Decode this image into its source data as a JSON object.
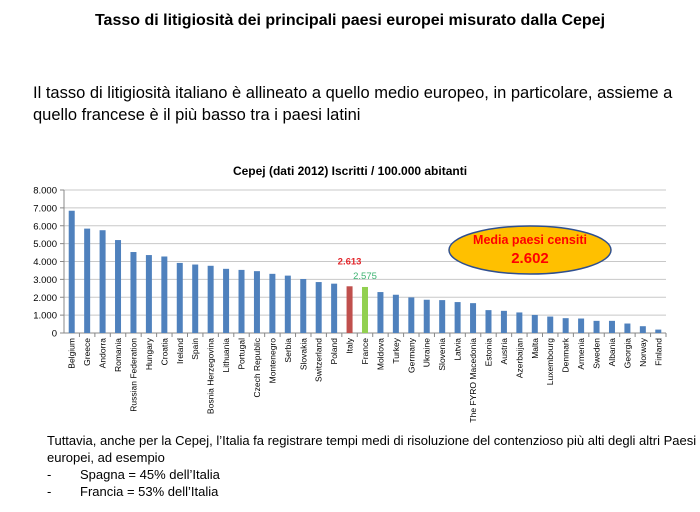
{
  "page": {
    "title": "Tasso di litigiosità dei principali paesi europei misurato dalla Cepej",
    "intro": "Il tasso di litigiosità italiano è allineato a quello medio europeo, in particolare, assieme a quello francese è il più basso tra i paesi latini",
    "footer_text": "Tuttavia, anche per la Cepej, l’Italia fa registrare tempi medi di risoluzione del contenzioso più alti degli altri Paesi europei, ad esempio",
    "footer_items": [
      {
        "dash": "-",
        "text": "Spagna = 45% dell’Italia"
      },
      {
        "dash": "-",
        "text": "Francia = 53% dell’Italia"
      }
    ]
  },
  "chart_data": {
    "type": "bar",
    "title": "Cepej (dati 2012) Iscritti / 100.000 abitanti",
    "xlabel": "",
    "ylabel": "",
    "ylim": [
      0,
      8000
    ],
    "yticks": [
      0,
      1000,
      2000,
      3000,
      4000,
      5000,
      6000,
      7000,
      8000
    ],
    "ytick_labels": [
      "0",
      "1.000",
      "2.000",
      "3.000",
      "4.000",
      "5.000",
      "6.000",
      "7.000",
      "8.000"
    ],
    "grid": true,
    "categories": [
      "Belgium",
      "Greece",
      "Andorra",
      "Romania",
      "Russian Federation",
      "Hungary",
      "Croatia",
      "Ireland",
      "Spain",
      "Bosnia Herzegovina",
      "Lithuania",
      "Portugal",
      "Czech Republic",
      "Montenegro",
      "Serbia",
      "Slovakia",
      "Switzerland",
      "Poland",
      "Italy",
      "France",
      "Moldova",
      "Turkey",
      "Germany",
      "Ukraine",
      "Slovenia",
      "Latvia",
      "The FYRO Macedonia",
      "Estonia",
      "Austria",
      "Azerbaijan",
      "Malta",
      "Luxembourg",
      "Denmark",
      "Armenia",
      "Sweden",
      "Albania",
      "Georgia",
      "Norway",
      "Finland"
    ],
    "values": [
      6840,
      5840,
      5750,
      5200,
      4530,
      4360,
      4280,
      3920,
      3830,
      3760,
      3590,
      3530,
      3460,
      3310,
      3210,
      3020,
      2850,
      2760,
      2613,
      2575,
      2290,
      2140,
      1990,
      1860,
      1840,
      1730,
      1670,
      1280,
      1240,
      1150,
      1010,
      920,
      830,
      810,
      680,
      680,
      530,
      380,
      190
    ],
    "colors": {
      "default": "#4f81bd",
      "Italy": "#c0504d",
      "France": "#92d050"
    },
    "data_labels": [
      {
        "category": "Italy",
        "text": "2.613",
        "color": "#e3262b"
      },
      {
        "category": "France",
        "text": "2.575",
        "color": "#3cb371"
      }
    ],
    "annotation": {
      "line1": "Media paesi censiti",
      "line2": "2.602",
      "fill": "#ffc000",
      "stroke": "#2f4f8f",
      "text_color": "#ff0000"
    }
  }
}
